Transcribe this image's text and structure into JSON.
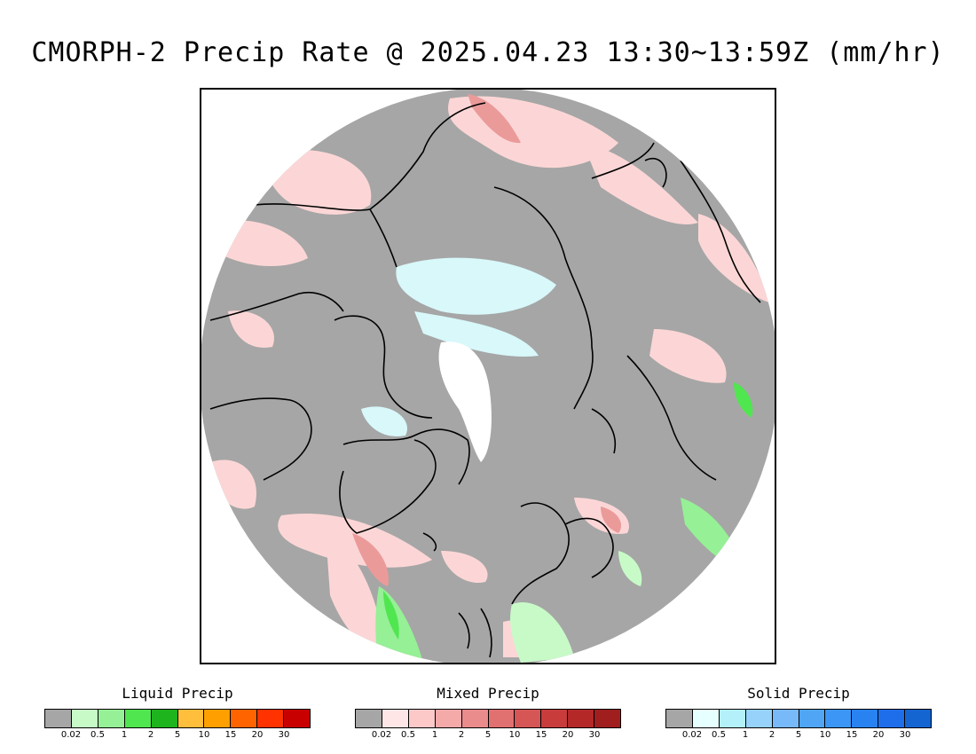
{
  "title": "CMORPH-2 Precip Rate @ 2025.04.23 13:30~13:59Z (mm/hr)",
  "map": {
    "projection": "north polar stereographic",
    "background_color": "#a6a6a6",
    "coastline_color": "#000000"
  },
  "legends": [
    {
      "title": "Liquid Precip",
      "colors": [
        "#a6a6a6",
        "#c8fac8",
        "#96f096",
        "#50e650",
        "#1eb41e",
        "#ffbe3c",
        "#ffa000",
        "#ff6400",
        "#ff3200",
        "#c80000"
      ],
      "ticks": [
        "0.02",
        "0.5",
        "1",
        "2",
        "5",
        "10",
        "15",
        "20",
        "30"
      ]
    },
    {
      "title": "Mixed Precip",
      "colors": [
        "#a6a6a6",
        "#ffe6e6",
        "#fcc8c8",
        "#f5aaaa",
        "#eb8c8c",
        "#e17070",
        "#d65555",
        "#c83c3c",
        "#b42828",
        "#a01e1e"
      ],
      "ticks": [
        "0.02",
        "0.5",
        "1",
        "2",
        "5",
        "10",
        "15",
        "20",
        "30"
      ]
    },
    {
      "title": "Solid Precip",
      "colors": [
        "#a6a6a6",
        "#e6ffff",
        "#b4f0fa",
        "#96d2fa",
        "#78b9fa",
        "#50a5f5",
        "#3c96f5",
        "#2882f0",
        "#1e6eeb",
        "#1464d2"
      ],
      "ticks": [
        "0.02",
        "0.5",
        "1",
        "2",
        "5",
        "10",
        "15",
        "20",
        "30"
      ]
    }
  ]
}
